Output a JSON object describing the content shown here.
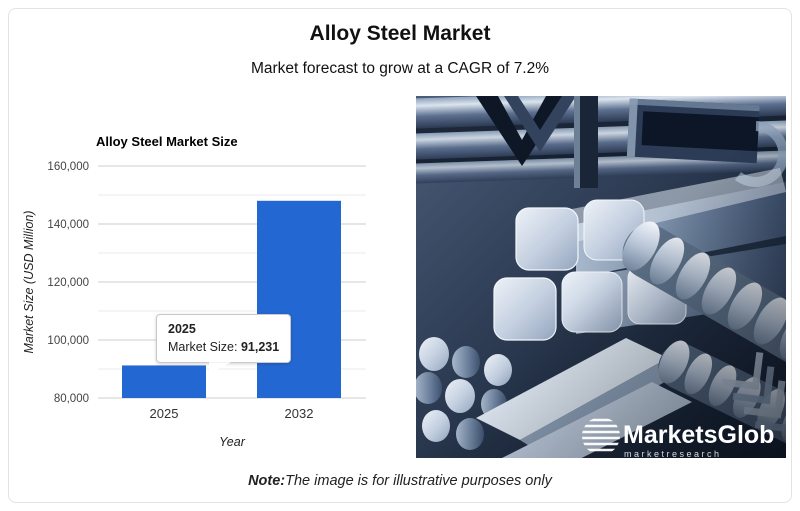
{
  "header": {
    "title": "Alloy Steel Market",
    "subtitle": "Market forecast to grow at a CAGR of 7.2%"
  },
  "chart_data": {
    "type": "bar",
    "title": "Alloy Steel Market Size",
    "xlabel": "Year",
    "ylabel": "Market Size (USD Million)",
    "categories": [
      "2025",
      "2032"
    ],
    "values": [
      91231,
      148000
    ],
    "ylim": [
      80000,
      160000
    ],
    "y_major_step": 20000,
    "y_minor_step": 10000,
    "grid": true,
    "legend": "none",
    "bar_color": "#2368d2",
    "major_grid_color": "#cccccc",
    "minor_grid_color": "#ebebeb",
    "tick_color": "#444444",
    "title_color": "#000000"
  },
  "tooltip": {
    "year": "2025",
    "label": "Market Size:",
    "value": "91,231"
  },
  "photo": {
    "description": "assorted alloy steel bars and profiles",
    "logo": {
      "brand": "MarketsGlob",
      "tagline": "m a r k e t   r e s e a r c h"
    }
  },
  "note": {
    "prefix": "Note:",
    "text": "The image is for illustrative purposes only"
  }
}
